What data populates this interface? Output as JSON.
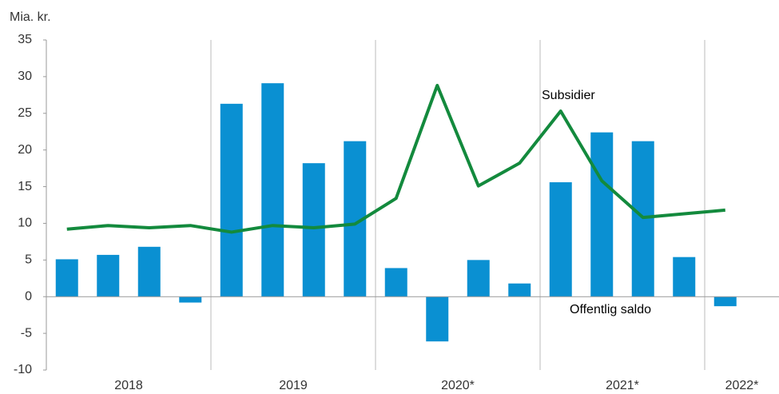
{
  "chart_data": {
    "type": "bar",
    "y_label": "Mia. kr.",
    "categories": [
      null,
      null,
      null,
      null,
      null,
      null,
      null,
      null,
      null,
      null,
      null,
      null,
      null,
      null,
      null,
      null,
      null
    ],
    "year_labels": [
      "2018",
      "2019",
      "2020*",
      "2021*",
      "2022*"
    ],
    "series": [
      {
        "name": "Offentlig saldo",
        "kind": "bar",
        "color": "#0a90d2",
        "values": [
          5.1,
          5.7,
          6.8,
          -0.8,
          26.3,
          29.1,
          18.2,
          21.2,
          3.9,
          -6.1,
          5.0,
          1.8,
          15.6,
          22.4,
          21.2,
          5.4,
          -1.3
        ]
      },
      {
        "name": "Subsidier",
        "kind": "line",
        "color": "#138a3d",
        "values": [
          9.2,
          9.7,
          9.4,
          9.7,
          8.8,
          9.7,
          9.4,
          9.9,
          13.4,
          28.8,
          15.1,
          18.2,
          25.3,
          15.8,
          10.8,
          11.3,
          11.8
        ]
      }
    ],
    "ylim": [
      -10,
      35
    ],
    "yticks": [
      -10,
      -5,
      0,
      5,
      10,
      15,
      20,
      25,
      30,
      35
    ]
  }
}
